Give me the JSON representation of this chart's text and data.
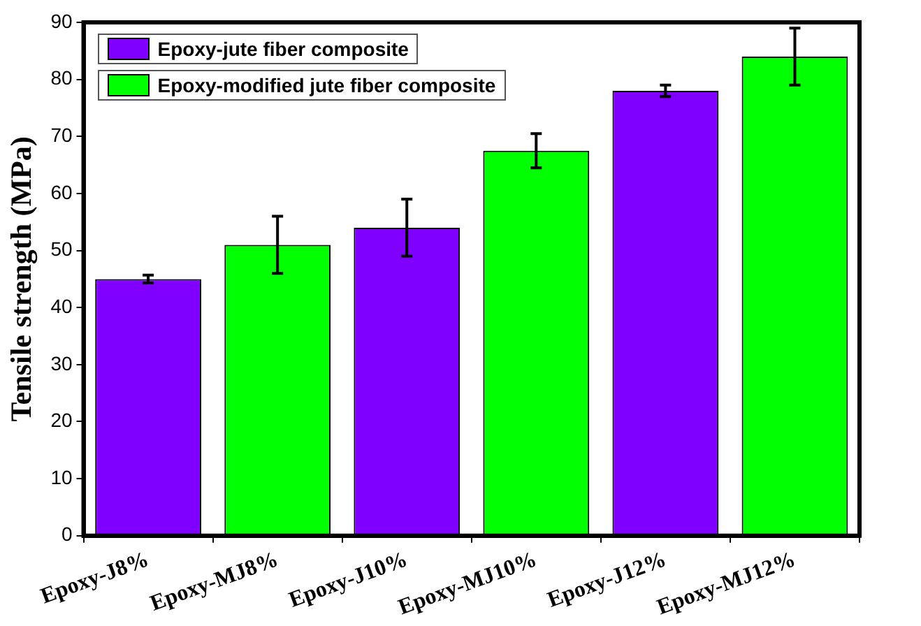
{
  "chart_data": {
    "type": "bar",
    "ylabel": "Tensile strength (MPa)",
    "categories": [
      "Epoxy-J8%",
      "Epoxy-MJ8%",
      "Epoxy-J10%",
      "Epoxy-MJ10%",
      "Epoxy-J12%",
      "Epoxy-MJ12%"
    ],
    "series": [
      {
        "name": "Epoxy-jute fiber composite",
        "color": "#8000ff",
        "values": [
          45,
          null,
          54,
          null,
          78,
          null
        ],
        "errors": [
          0.7,
          null,
          5,
          null,
          1,
          null
        ]
      },
      {
        "name": "Epoxy-modified jute fiber composite",
        "color": "#00ff00",
        "values": [
          null,
          51,
          null,
          67.5,
          null,
          84
        ],
        "errors": [
          null,
          5,
          null,
          3,
          null,
          5
        ]
      }
    ],
    "ylim": [
      0,
      90
    ],
    "yticks": [
      0,
      10,
      20,
      30,
      40,
      50,
      60,
      70,
      80,
      90
    ],
    "grid": false,
    "legend": "top left"
  }
}
